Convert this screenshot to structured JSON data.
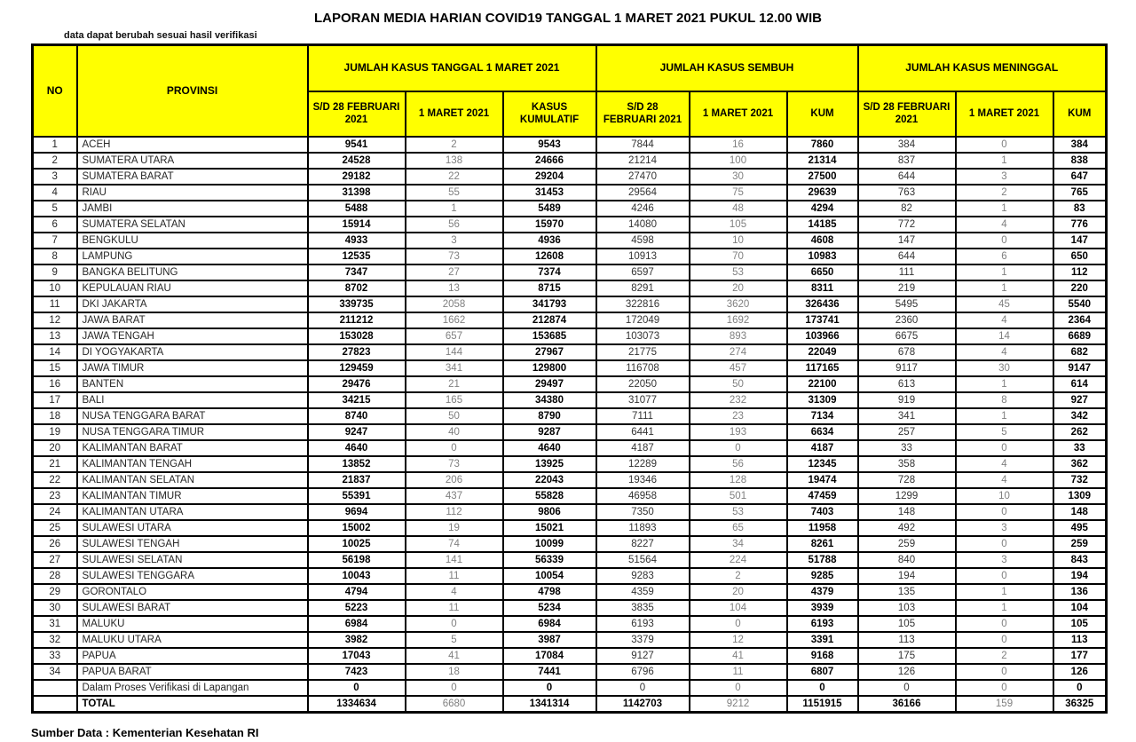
{
  "title": "LAPORAN MEDIA HARIAN COVID19 TANGGAL 1 MARET 2021 PUKUL 12.00 WIB",
  "note": "data dapat berubah sesuai hasil verifikasi",
  "source": "Sumber Data : Kementerian Kesehatan RI",
  "colors": {
    "header_bg": "#FFFF00",
    "border": "#000000",
    "secondary_text": "#7f7f7f"
  },
  "table": {
    "headers": {
      "no": "NO",
      "provinsi": "PROVINSI",
      "groups": [
        {
          "label": "JUMLAH KASUS TANGGAL 1 MARET 2021",
          "cols": [
            "S/D 28 FEBRUARI 2021",
            "1 MARET 2021",
            "KASUS KUMULATIF"
          ]
        },
        {
          "label": "JUMLAH KASUS SEMBUH",
          "cols": [
            "S/D 28 FEBRUARI 2021",
            "1 MARET 2021",
            "KUM"
          ]
        },
        {
          "label": "JUMLAH KASUS MENINGGAL",
          "cols": [
            "S/D 28 FEBRUARI 2021",
            "1 MARET 2021",
            "KUM"
          ]
        }
      ]
    },
    "rows": [
      {
        "no": "1",
        "provinsi": "ACEH",
        "values": [
          9541,
          2,
          9543,
          7844,
          16,
          7860,
          384,
          0,
          384
        ]
      },
      {
        "no": "2",
        "provinsi": "SUMATERA UTARA",
        "values": [
          24528,
          138,
          24666,
          21214,
          100,
          21314,
          837,
          1,
          838
        ]
      },
      {
        "no": "3",
        "provinsi": "SUMATERA BARAT",
        "values": [
          29182,
          22,
          29204,
          27470,
          30,
          27500,
          644,
          3,
          647
        ]
      },
      {
        "no": "4",
        "provinsi": "RIAU",
        "values": [
          31398,
          55,
          31453,
          29564,
          75,
          29639,
          763,
          2,
          765
        ]
      },
      {
        "no": "5",
        "provinsi": "JAMBI",
        "values": [
          5488,
          1,
          5489,
          4246,
          48,
          4294,
          82,
          1,
          83
        ]
      },
      {
        "no": "6",
        "provinsi": "SUMATERA SELATAN",
        "values": [
          15914,
          56,
          15970,
          14080,
          105,
          14185,
          772,
          4,
          776
        ]
      },
      {
        "no": "7",
        "provinsi": "BENGKULU",
        "values": [
          4933,
          3,
          4936,
          4598,
          10,
          4608,
          147,
          0,
          147
        ]
      },
      {
        "no": "8",
        "provinsi": "LAMPUNG",
        "values": [
          12535,
          73,
          12608,
          10913,
          70,
          10983,
          644,
          6,
          650
        ]
      },
      {
        "no": "9",
        "provinsi": "BANGKA BELITUNG",
        "values": [
          7347,
          27,
          7374,
          6597,
          53,
          6650,
          111,
          1,
          112
        ]
      },
      {
        "no": "10",
        "provinsi": "KEPULAUAN RIAU",
        "values": [
          8702,
          13,
          8715,
          8291,
          20,
          8311,
          219,
          1,
          220
        ]
      },
      {
        "no": "11",
        "provinsi": "DKI JAKARTA",
        "values": [
          339735,
          2058,
          341793,
          322816,
          3620,
          326436,
          5495,
          45,
          5540
        ]
      },
      {
        "no": "12",
        "provinsi": "JAWA BARAT",
        "values": [
          211212,
          1662,
          212874,
          172049,
          1692,
          173741,
          2360,
          4,
          2364
        ]
      },
      {
        "no": "13",
        "provinsi": "JAWA TENGAH",
        "values": [
          153028,
          657,
          153685,
          103073,
          893,
          103966,
          6675,
          14,
          6689
        ]
      },
      {
        "no": "14",
        "provinsi": "DI YOGYAKARTA",
        "values": [
          27823,
          144,
          27967,
          21775,
          274,
          22049,
          678,
          4,
          682
        ]
      },
      {
        "no": "15",
        "provinsi": "JAWA TIMUR",
        "values": [
          129459,
          341,
          129800,
          116708,
          457,
          117165,
          9117,
          30,
          9147
        ]
      },
      {
        "no": "16",
        "provinsi": "BANTEN",
        "values": [
          29476,
          21,
          29497,
          22050,
          50,
          22100,
          613,
          1,
          614
        ]
      },
      {
        "no": "17",
        "provinsi": "BALI",
        "values": [
          34215,
          165,
          34380,
          31077,
          232,
          31309,
          919,
          8,
          927
        ]
      },
      {
        "no": "18",
        "provinsi": "NUSA TENGGARA BARAT",
        "values": [
          8740,
          50,
          8790,
          7111,
          23,
          7134,
          341,
          1,
          342
        ]
      },
      {
        "no": "19",
        "provinsi": "NUSA TENGGARA TIMUR",
        "values": [
          9247,
          40,
          9287,
          6441,
          193,
          6634,
          257,
          5,
          262
        ]
      },
      {
        "no": "20",
        "provinsi": "KALIMANTAN BARAT",
        "values": [
          4640,
          0,
          4640,
          4187,
          0,
          4187,
          33,
          0,
          33
        ]
      },
      {
        "no": "21",
        "provinsi": "KALIMANTAN TENGAH",
        "values": [
          13852,
          73,
          13925,
          12289,
          56,
          12345,
          358,
          4,
          362
        ]
      },
      {
        "no": "22",
        "provinsi": "KALIMANTAN SELATAN",
        "values": [
          21837,
          206,
          22043,
          19346,
          128,
          19474,
          728,
          4,
          732
        ]
      },
      {
        "no": "23",
        "provinsi": "KALIMANTAN TIMUR",
        "values": [
          55391,
          437,
          55828,
          46958,
          501,
          47459,
          1299,
          10,
          1309
        ]
      },
      {
        "no": "24",
        "provinsi": "KALIMANTAN UTARA",
        "values": [
          9694,
          112,
          9806,
          7350,
          53,
          7403,
          148,
          0,
          148
        ]
      },
      {
        "no": "25",
        "provinsi": "SULAWESI UTARA",
        "values": [
          15002,
          19,
          15021,
          11893,
          65,
          11958,
          492,
          3,
          495
        ]
      },
      {
        "no": "26",
        "provinsi": "SULAWESI TENGAH",
        "values": [
          10025,
          74,
          10099,
          8227,
          34,
          8261,
          259,
          0,
          259
        ]
      },
      {
        "no": "27",
        "provinsi": "SULAWESI SELATAN",
        "values": [
          56198,
          141,
          56339,
          51564,
          224,
          51788,
          840,
          3,
          843
        ]
      },
      {
        "no": "28",
        "provinsi": "SULAWESI TENGGARA",
        "values": [
          10043,
          11,
          10054,
          9283,
          2,
          9285,
          194,
          0,
          194
        ]
      },
      {
        "no": "29",
        "provinsi": "GORONTALO",
        "values": [
          4794,
          4,
          4798,
          4359,
          20,
          4379,
          135,
          1,
          136
        ]
      },
      {
        "no": "30",
        "provinsi": "SULAWESI BARAT",
        "values": [
          5223,
          11,
          5234,
          3835,
          104,
          3939,
          103,
          1,
          104
        ]
      },
      {
        "no": "31",
        "provinsi": "MALUKU",
        "values": [
          6984,
          0,
          6984,
          6193,
          0,
          6193,
          105,
          0,
          105
        ]
      },
      {
        "no": "32",
        "provinsi": "MALUKU UTARA",
        "values": [
          3982,
          5,
          3987,
          3379,
          12,
          3391,
          113,
          0,
          113
        ]
      },
      {
        "no": "33",
        "provinsi": "PAPUA",
        "values": [
          17043,
          41,
          17084,
          9127,
          41,
          9168,
          175,
          2,
          177
        ]
      },
      {
        "no": "34",
        "provinsi": "PAPUA BARAT",
        "values": [
          7423,
          18,
          7441,
          6796,
          11,
          6807,
          126,
          0,
          126
        ]
      },
      {
        "no": "",
        "provinsi": "Dalam Proses Verifikasi di Lapangan",
        "values": [
          0,
          0,
          0,
          0,
          0,
          0,
          0,
          0,
          0
        ]
      }
    ],
    "total": {
      "label": "TOTAL",
      "values": [
        1334634,
        6680,
        1341314,
        1142703,
        9212,
        1151915,
        36166,
        159,
        36325
      ]
    }
  }
}
